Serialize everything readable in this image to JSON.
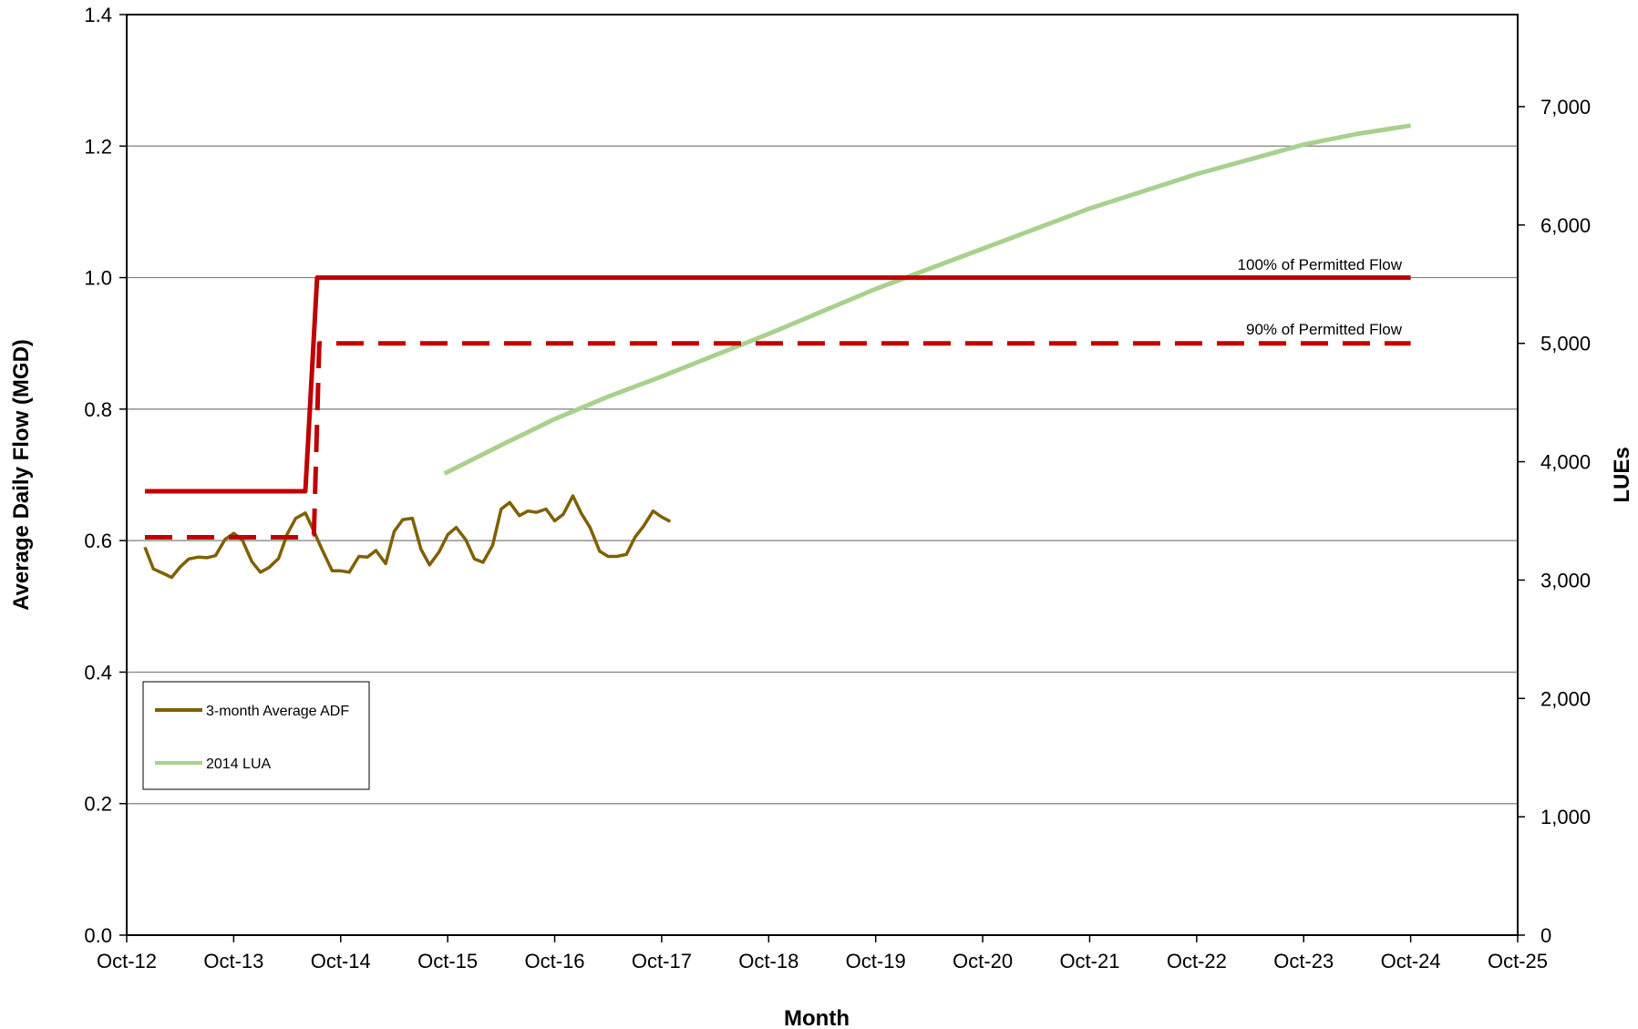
{
  "chart_data": {
    "type": "line",
    "title": "",
    "xlabel": "Month",
    "ylabel": "Average Daily Flow (MGD)",
    "y2label": "LUEs",
    "x_tick_labels": [
      "Oct-12",
      "Oct-13",
      "Oct-14",
      "Oct-15",
      "Oct-16",
      "Oct-17",
      "Oct-18",
      "Oct-19",
      "Oct-20",
      "Oct-21",
      "Oct-22",
      "Oct-23",
      "Oct-24",
      "Oct-25"
    ],
    "ylim": [
      0,
      1.4
    ],
    "y_ticks": [
      "0.0",
      "0.2",
      "0.4",
      "0.6",
      "0.8",
      "1.0",
      "1.2",
      "1.4"
    ],
    "y2lim": [
      0,
      7778
    ],
    "y2_ticks": [
      "0",
      "1,000",
      "2,000",
      "3,000",
      "4,000",
      "5,000",
      "6,000",
      "7,000"
    ],
    "grid": "horizontal",
    "legend_position": "bottom-left",
    "legend": [
      "3-month Average ADF",
      "2014 LUA"
    ],
    "annotations": [
      "100% of Permitted Flow",
      "90% of Permitted Flow"
    ],
    "colors": {
      "adf": "#7F6000",
      "lua": "#A9D18E",
      "permitted": "#C00000"
    },
    "series": [
      {
        "name": "3-month Average ADF",
        "axis": "left",
        "x": [
          0.17,
          0.25,
          0.33,
          0.42,
          0.5,
          0.58,
          0.67,
          0.75,
          0.83,
          0.92,
          1.0,
          1.08,
          1.17,
          1.25,
          1.33,
          1.42,
          1.5,
          1.58,
          1.67,
          1.75,
          1.83,
          1.92,
          2.0,
          2.08,
          2.17,
          2.25,
          2.33,
          2.42,
          2.5,
          2.58,
          2.67,
          2.75,
          2.83,
          2.92,
          3.0,
          3.08,
          3.17,
          3.25,
          3.33,
          3.42,
          3.5,
          3.58,
          3.67,
          3.75,
          3.83,
          3.92,
          4.0,
          4.08,
          4.17,
          4.25,
          4.33,
          4.42,
          4.5,
          4.58,
          4.67,
          4.75,
          4.83,
          4.92,
          5.0,
          5.08
        ],
        "values": [
          0.59,
          0.557,
          0.551,
          0.544,
          0.56,
          0.572,
          0.575,
          0.574,
          0.577,
          0.602,
          0.611,
          0.601,
          0.568,
          0.552,
          0.559,
          0.573,
          0.61,
          0.634,
          0.642,
          0.614,
          0.585,
          0.554,
          0.554,
          0.552,
          0.576,
          0.575,
          0.585,
          0.565,
          0.614,
          0.632,
          0.634,
          0.587,
          0.563,
          0.583,
          0.609,
          0.62,
          0.601,
          0.572,
          0.567,
          0.593,
          0.648,
          0.658,
          0.638,
          0.645,
          0.643,
          0.648,
          0.63,
          0.64,
          0.668,
          0.641,
          0.62,
          0.584,
          0.576,
          0.576,
          0.579,
          0.605,
          0.622,
          0.645,
          0.636,
          0.629
        ]
      },
      {
        "name": "2014 LUA",
        "axis": "right",
        "x": [
          2.97,
          3.5,
          4.0,
          4.5,
          5.0,
          6.0,
          7.0,
          8.0,
          9.0,
          10.0,
          11.0,
          11.5,
          12.0
        ],
        "values": [
          3900,
          4140,
          4360,
          4550,
          4720,
          5080,
          5460,
          5800,
          6140,
          6430,
          6680,
          6770,
          6840
        ]
      },
      {
        "name": "100% of Permitted Flow",
        "axis": "left",
        "x": [
          0.17,
          1.67,
          1.78,
          1.8,
          12.0
        ],
        "values": [
          0.675,
          0.675,
          1.0,
          1.0,
          1.0
        ]
      },
      {
        "name": "90% of Permitted Flow",
        "axis": "left",
        "x": [
          0.17,
          1.67,
          1.75,
          1.8,
          12.0
        ],
        "values": [
          0.605,
          0.605,
          0.61,
          0.9,
          0.9
        ]
      }
    ]
  }
}
